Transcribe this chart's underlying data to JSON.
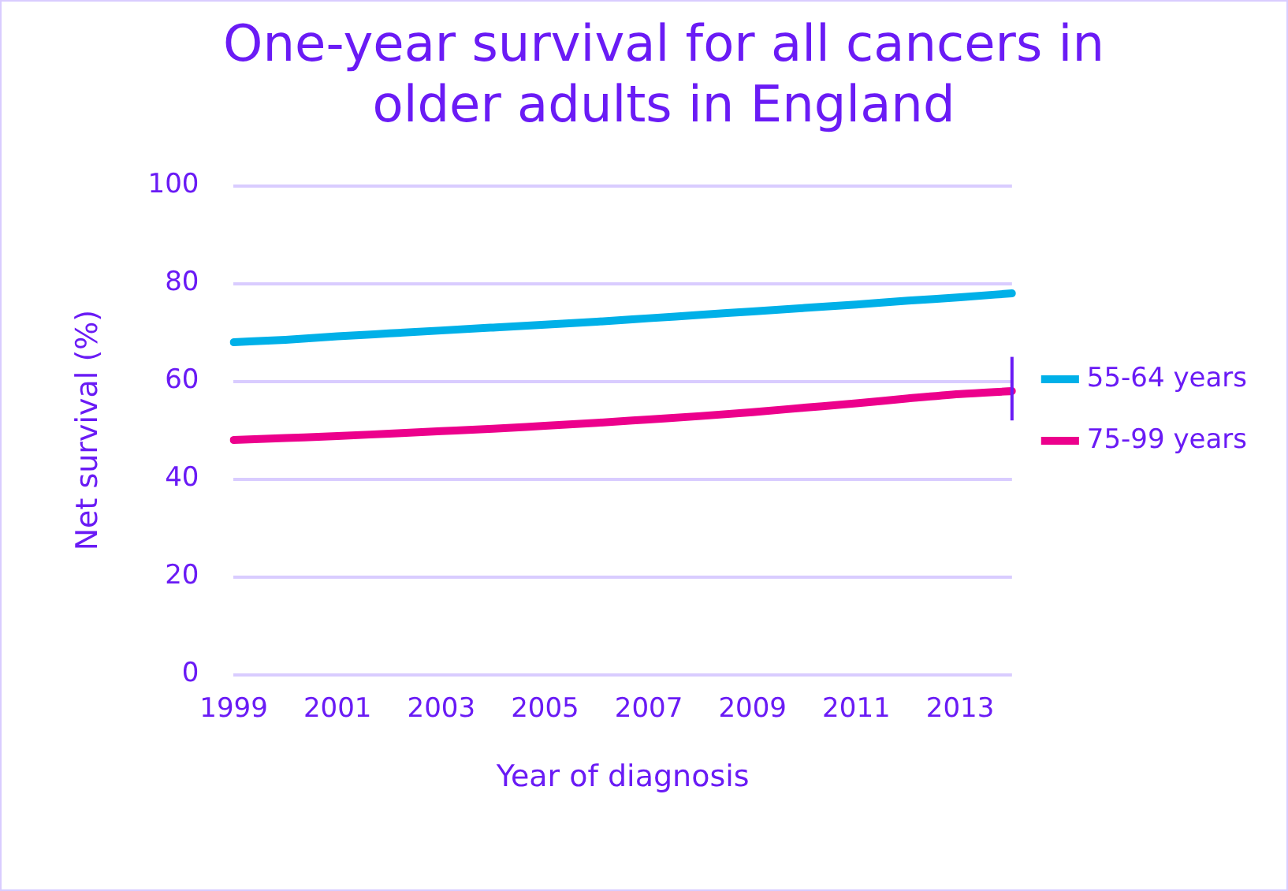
{
  "chart_data": {
    "type": "line",
    "title": "One-year survival for all cancers in older adults in England",
    "xlabel": "Year of diagnosis",
    "ylabel": "Net survival (%)",
    "categories": [
      "1999",
      null,
      "2001",
      null,
      "2003",
      null,
      "2005",
      null,
      "2007",
      null,
      "2009",
      null,
      "2011",
      null,
      "2013",
      null
    ],
    "series": [
      {
        "name": "55-64 years",
        "color": "#00b0e8",
        "values": [
          68,
          68.5,
          69.2,
          69.8,
          70.4,
          71,
          71.6,
          72.2,
          72.9,
          73.6,
          74.3,
          75,
          75.7,
          76.5,
          77.2,
          78
        ]
      },
      {
        "name": "75-99 years",
        "color": "#ec008c",
        "values": [
          48,
          48.4,
          48.8,
          49.3,
          49.8,
          50.3,
          50.9,
          51.5,
          52.2,
          52.9,
          53.7,
          54.6,
          55.5,
          56.5,
          57.4,
          58
        ],
        "errors": [
          null,
          null,
          null,
          null,
          null,
          null,
          null,
          null,
          null,
          null,
          null,
          null,
          null,
          null,
          null,
          [
            52,
            65
          ]
        ]
      }
    ],
    "ylim": [
      0,
      100
    ],
    "yticks": [
      0,
      20,
      40,
      60,
      80,
      100
    ],
    "grid": "y",
    "legend": "right",
    "marker": "none",
    "line_style": "solid"
  }
}
